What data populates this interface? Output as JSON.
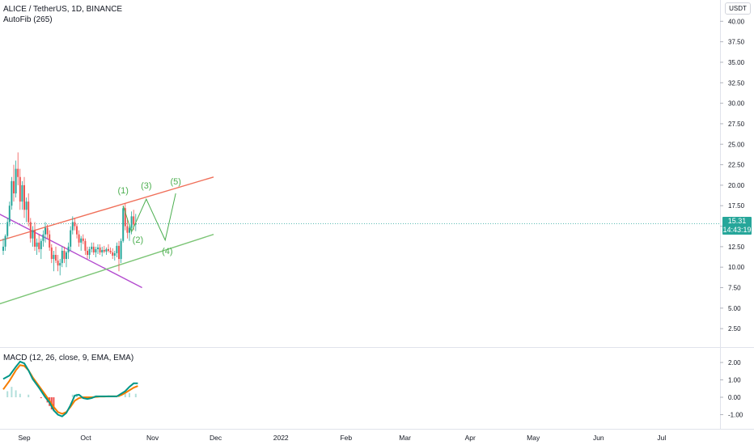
{
  "header": {
    "symbol_line": "ALICE / TetherUS, 1D, BINANCE",
    "indicator_label": "AutoFib (265)",
    "macd_label": "MACD (12, 26, close, 9, EMA, EMA)"
  },
  "currency_button": "USDT",
  "last_price": {
    "value": "15.31",
    "countdown": "14:43:19"
  },
  "colors": {
    "up_candle": "#26a69a",
    "down_candle": "#ef5350",
    "resistance": "#f0705a",
    "support": "#7cc576",
    "downtrend": "#b44ccf",
    "wave": "#4caf50",
    "macd_line": "#009688",
    "signal_line": "#f57c00"
  },
  "chart_data": {
    "type": "line",
    "price_axis": {
      "ticks": [
        "40.00",
        "37.50",
        "35.00",
        "32.50",
        "30.00",
        "27.50",
        "25.00",
        "22.50",
        "20.00",
        "17.50",
        "15.00",
        "12.50",
        "10.00",
        "7.50",
        "5.00",
        "2.50"
      ],
      "ylim": [
        0,
        41
      ]
    },
    "macd_axis": {
      "ticks": [
        "2.00",
        "1.00",
        "0.00",
        "-1.00"
      ],
      "ylim": [
        -1.6,
        2.4
      ]
    },
    "time_axis": {
      "ticks": [
        "Sep",
        "Oct",
        "Nov",
        "Dec",
        "2022",
        "Feb",
        "Mar",
        "Apr",
        "May",
        "Jun",
        "Jul"
      ],
      "day_index": [
        10,
        40,
        71,
        101,
        132,
        163,
        191,
        222,
        252,
        283,
        313
      ]
    },
    "candles": [
      [
        0,
        12,
        13.5,
        11.5,
        12.5
      ],
      [
        1,
        12.5,
        14,
        12,
        13.8
      ],
      [
        2,
        13.8,
        16,
        13.5,
        15.5
      ],
      [
        3,
        15.5,
        18,
        15,
        17.5
      ],
      [
        4,
        17.5,
        21,
        17,
        20.5
      ],
      [
        5,
        20.5,
        22.5,
        18,
        19
      ],
      [
        6,
        19,
        23,
        18.5,
        22
      ],
      [
        7,
        22,
        24,
        20,
        21
      ],
      [
        8,
        21,
        22,
        17,
        18
      ],
      [
        9,
        18,
        20.5,
        17,
        20
      ],
      [
        10,
        20,
        21,
        16,
        17
      ],
      [
        11,
        17,
        18.5,
        15.5,
        18
      ],
      [
        12,
        18,
        19,
        15,
        15.5
      ],
      [
        13,
        15.5,
        16,
        13,
        13.5
      ],
      [
        14,
        13.5,
        15,
        12.5,
        14.5
      ],
      [
        15,
        14.5,
        15.5,
        12,
        12.5
      ],
      [
        16,
        12.5,
        13.5,
        11.5,
        13
      ],
      [
        17,
        13,
        14,
        11.8,
        12.2
      ],
      [
        18,
        12.2,
        13.5,
        11,
        13.2
      ],
      [
        19,
        13.2,
        14.5,
        12.5,
        14
      ],
      [
        20,
        14,
        15.5,
        13,
        14.8
      ],
      [
        21,
        14.8,
        15.2,
        13.5,
        14
      ],
      [
        22,
        14,
        14.5,
        12,
        12.4
      ],
      [
        23,
        12.4,
        12.8,
        10.5,
        11
      ],
      [
        24,
        11,
        12,
        9.5,
        11.5
      ],
      [
        25,
        11.5,
        12.5,
        10.5,
        10.8
      ],
      [
        26,
        10.8,
        11.5,
        9.5,
        10.2
      ],
      [
        27,
        10.2,
        11,
        9,
        10.5
      ],
      [
        28,
        10.5,
        12.5,
        10,
        12
      ],
      [
        29,
        12,
        12.5,
        10.5,
        11
      ],
      [
        30,
        11,
        12,
        10,
        11.8
      ],
      [
        31,
        11.8,
        13,
        11,
        12.5
      ],
      [
        32,
        12.5,
        15,
        12,
        14.5
      ],
      [
        33,
        14.5,
        16.2,
        14,
        15.5
      ],
      [
        34,
        15.5,
        16,
        14.5,
        15
      ],
      [
        35,
        15,
        15.3,
        13.5,
        14
      ],
      [
        36,
        14,
        14.5,
        12.5,
        13
      ],
      [
        37,
        13,
        13.8,
        12,
        13.5
      ],
      [
        38,
        13.5,
        14,
        12.8,
        13.2
      ],
      [
        39,
        13.2,
        13.5,
        11.5,
        12
      ],
      [
        40,
        12,
        12.5,
        11,
        11.5
      ],
      [
        41,
        11.5,
        12.5,
        11,
        12.2
      ],
      [
        42,
        12.2,
        13,
        11.8,
        12.5
      ],
      [
        43,
        12.5,
        13,
        11.5,
        11.8
      ],
      [
        44,
        11.8,
        12.5,
        11.2,
        12.2
      ],
      [
        45,
        12.2,
        12.8,
        11.6,
        12.4
      ],
      [
        46,
        12.4,
        12.8,
        11.5,
        11.8
      ],
      [
        47,
        11.8,
        12.5,
        11.3,
        12.1
      ],
      [
        48,
        12.1,
        12.6,
        11.7,
        11.9
      ],
      [
        49,
        11.9,
        12.4,
        11.5,
        12.2
      ],
      [
        50,
        12.2,
        12.8,
        11.8,
        12
      ],
      [
        51,
        12,
        12.4,
        11.6,
        11.8
      ],
      [
        52,
        11.8,
        12.3,
        11,
        11.4
      ],
      [
        53,
        11.4,
        12,
        10.8,
        11.7
      ],
      [
        54,
        11.7,
        13,
        11.2,
        12.6
      ],
      [
        55,
        12.6,
        13.2,
        9.5,
        11
      ],
      [
        56,
        11,
        13.5,
        10.5,
        13.2
      ],
      [
        57,
        13.2,
        17.5,
        13,
        17.2
      ],
      [
        58,
        17.2,
        17.8,
        14.5,
        15
      ],
      [
        59,
        15,
        16,
        13.5,
        14.2
      ],
      [
        60,
        14.2,
        15.2,
        13.2,
        14.8
      ],
      [
        61,
        14.8,
        16.8,
        14,
        16.2
      ],
      [
        62,
        16.2,
        17,
        14.5,
        15.2
      ],
      [
        63,
        15.2,
        16.5,
        14.4,
        15.31
      ]
    ],
    "trend_lines": [
      {
        "name": "downtrend",
        "from": [
          -2,
          16.5
        ],
        "to": [
          66,
          7.5
        ]
      },
      {
        "name": "resistance",
        "from": [
          -2,
          13.2
        ],
        "to": [
          100,
          21
        ]
      },
      {
        "name": "support",
        "from": [
          -2,
          5.5
        ],
        "to": [
          100,
          14
        ]
      }
    ],
    "wave_projection": {
      "points": [
        [
          57,
          17.5
        ],
        [
          61,
          14.3
        ],
        [
          68,
          18.3
        ],
        [
          77,
          13.3
        ],
        [
          82,
          19
        ]
      ],
      "labels": [
        {
          "text": "(1)",
          "at": [
            57,
            19
          ]
        },
        {
          "text": "(2)",
          "at": [
            64,
            13
          ]
        },
        {
          "text": "(3)",
          "at": [
            68,
            19.6
          ]
        },
        {
          "text": "(4)",
          "at": [
            78,
            11.6
          ]
        },
        {
          "text": "(5)",
          "at": [
            82,
            20.1
          ]
        }
      ]
    },
    "last_price_line": 15.31,
    "macd": {
      "macd_line": [
        [
          0,
          1.05
        ],
        [
          3,
          1.25
        ],
        [
          6,
          1.75
        ],
        [
          8,
          2.05
        ],
        [
          10,
          1.95
        ],
        [
          12,
          1.55
        ],
        [
          14,
          1.05
        ],
        [
          17,
          0.55
        ],
        [
          20,
          0.0
        ],
        [
          22,
          -0.3
        ],
        [
          24,
          -0.75
        ],
        [
          26,
          -1.0
        ],
        [
          28,
          -1.1
        ],
        [
          30,
          -0.9
        ],
        [
          32,
          -0.45
        ],
        [
          34,
          0.1
        ],
        [
          36,
          0.15
        ],
        [
          38,
          -0.05
        ],
        [
          40,
          -0.1
        ],
        [
          42,
          -0.05
        ],
        [
          44,
          0.05
        ],
        [
          46,
          0.05
        ],
        [
          48,
          0.05
        ],
        [
          50,
          0.05
        ],
        [
          52,
          0.05
        ],
        [
          54,
          0.05
        ],
        [
          56,
          0.2
        ],
        [
          58,
          0.35
        ],
        [
          60,
          0.6
        ],
        [
          62,
          0.8
        ],
        [
          64,
          0.8
        ]
      ],
      "signal_line": [
        [
          0,
          0.45
        ],
        [
          3,
          0.95
        ],
        [
          6,
          1.55
        ],
        [
          8,
          1.85
        ],
        [
          10,
          1.8
        ],
        [
          12,
          1.55
        ],
        [
          14,
          1.15
        ],
        [
          17,
          0.65
        ],
        [
          20,
          0.15
        ],
        [
          22,
          -0.2
        ],
        [
          24,
          -0.55
        ],
        [
          26,
          -0.85
        ],
        [
          28,
          -0.95
        ],
        [
          30,
          -0.85
        ],
        [
          32,
          -0.55
        ],
        [
          34,
          -0.2
        ],
        [
          36,
          -0.05
        ],
        [
          38,
          0.0
        ],
        [
          40,
          0.0
        ],
        [
          42,
          0.0
        ],
        [
          44,
          0.02
        ],
        [
          46,
          0.04
        ],
        [
          48,
          0.04
        ],
        [
          50,
          0.05
        ],
        [
          52,
          0.05
        ],
        [
          54,
          0.06
        ],
        [
          56,
          0.12
        ],
        [
          58,
          0.25
        ],
        [
          60,
          0.4
        ],
        [
          62,
          0.55
        ],
        [
          64,
          0.65
        ]
      ],
      "histogram": [
        [
          2,
          0.35
        ],
        [
          4,
          0.6
        ],
        [
          6,
          0.4
        ],
        [
          8,
          0.2
        ],
        [
          12,
          0.15
        ],
        [
          18,
          -0.05
        ],
        [
          21,
          -0.3
        ],
        [
          22,
          -0.5
        ],
        [
          23,
          -0.7
        ],
        [
          24,
          -0.8
        ],
        [
          33,
          0.15
        ],
        [
          35,
          0.2
        ],
        [
          40,
          0.02
        ],
        [
          42,
          0.05
        ],
        [
          50,
          0.1
        ],
        [
          55,
          0.1
        ],
        [
          58,
          0.2
        ],
        [
          60,
          0.25
        ],
        [
          63,
          0.2
        ]
      ]
    }
  }
}
